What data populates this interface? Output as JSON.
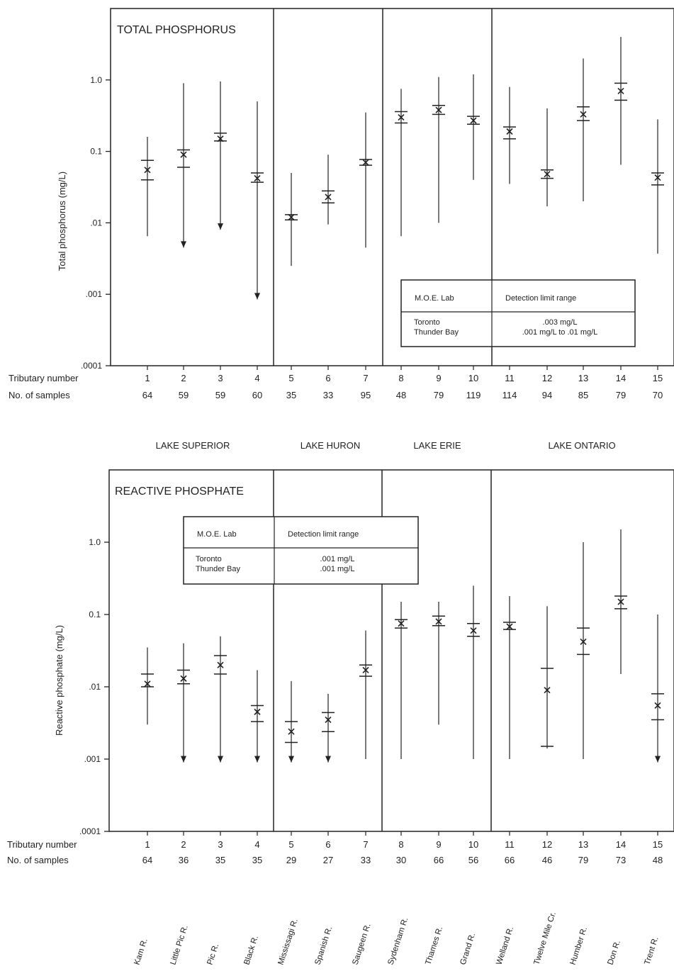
{
  "chart_data": [
    {
      "type": "range-plot",
      "title": "TOTAL PHOSPHORUS",
      "ylabel": "Total phosphorus   (mg/L)",
      "yscale": "log",
      "ylim": [
        0.0001,
        10
      ],
      "yticks": [
        {
          "v": 0.0001,
          "label": ".0001"
        },
        {
          "v": 0.001,
          "label": ".001"
        },
        {
          "v": 0.01,
          "label": ".01"
        },
        {
          "v": 0.1,
          "label": "0.1"
        },
        {
          "v": 1.0,
          "label": "1.0"
        }
      ],
      "row_labels": {
        "tributary": "Tributary number",
        "samples": "No. of samples"
      },
      "tributaries": [
        "1",
        "2",
        "3",
        "4",
        "5",
        "6",
        "7",
        "8",
        "9",
        "10",
        "11",
        "12",
        "13",
        "14",
        "15"
      ],
      "samples": [
        "64",
        "59",
        "59",
        "60",
        "35",
        "33",
        "95",
        "48",
        "79",
        "119",
        "114",
        "94",
        "85",
        "79",
        "70"
      ],
      "points": [
        {
          "max": 0.16,
          "upper": 0.075,
          "mean": 0.055,
          "lower": 0.04,
          "min": 0.0065,
          "min_arrow": false
        },
        {
          "max": 0.9,
          "upper": 0.105,
          "mean": 0.09,
          "lower": 0.06,
          "min": 0.0045,
          "min_arrow": true
        },
        {
          "max": 0.95,
          "upper": 0.18,
          "mean": 0.15,
          "lower": 0.14,
          "min": 0.008,
          "min_arrow": true
        },
        {
          "max": 0.5,
          "upper": 0.05,
          "mean": 0.042,
          "lower": 0.037,
          "min": 0.00085,
          "min_arrow": true
        },
        {
          "max": 0.05,
          "upper": 0.013,
          "mean": 0.012,
          "lower": 0.011,
          "min": 0.0025,
          "min_arrow": false
        },
        {
          "max": 0.09,
          "upper": 0.028,
          "mean": 0.023,
          "lower": 0.019,
          "min": 0.0095,
          "min_arrow": false
        },
        {
          "max": 0.35,
          "upper": 0.077,
          "mean": 0.07,
          "lower": 0.064,
          "min": 0.0045,
          "min_arrow": false
        },
        {
          "max": 0.75,
          "upper": 0.36,
          "mean": 0.3,
          "lower": 0.25,
          "min": 0.0065,
          "min_arrow": false
        },
        {
          "max": 1.1,
          "upper": 0.44,
          "mean": 0.38,
          "lower": 0.33,
          "min": 0.01,
          "min_arrow": false
        },
        {
          "max": 1.2,
          "upper": 0.31,
          "mean": 0.27,
          "lower": 0.24,
          "min": 0.04,
          "min_arrow": false
        },
        {
          "max": 0.8,
          "upper": 0.22,
          "mean": 0.19,
          "lower": 0.15,
          "min": 0.035,
          "min_arrow": false
        },
        {
          "max": 0.4,
          "upper": 0.055,
          "mean": 0.048,
          "lower": 0.042,
          "min": 0.017,
          "min_arrow": false
        },
        {
          "max": 2.0,
          "upper": 0.42,
          "mean": 0.33,
          "lower": 0.27,
          "min": 0.02,
          "min_arrow": false
        },
        {
          "max": 4.0,
          "upper": 0.9,
          "mean": 0.7,
          "lower": 0.52,
          "min": 0.065,
          "min_arrow": false
        },
        {
          "max": 0.28,
          "upper": 0.05,
          "mean": 0.043,
          "lower": 0.034,
          "min": 0.0037,
          "min_arrow": false
        }
      ],
      "inset_table": {
        "header": [
          "M.O.E. Lab",
          "Detection limit range"
        ],
        "rows": [
          [
            "Toronto\nThunder Bay",
            ".003 mg/L\n.001 mg/L to .01 mg/L"
          ]
        ]
      }
    },
    {
      "type": "range-plot",
      "title": "REACTIVE PHOSPHATE",
      "ylabel": "Reactive phosphate   (mg/L)",
      "yscale": "log",
      "ylim": [
        0.0001,
        10
      ],
      "yticks": [
        {
          "v": 0.0001,
          "label": ".0001"
        },
        {
          "v": 0.001,
          "label": ".001"
        },
        {
          "v": 0.01,
          "label": ".01"
        },
        {
          "v": 0.1,
          "label": "0.1"
        },
        {
          "v": 1.0,
          "label": "1.0"
        }
      ],
      "row_labels": {
        "tributary": "Tributary number",
        "samples": "No. of samples"
      },
      "tributaries": [
        "1",
        "2",
        "3",
        "4",
        "5",
        "6",
        "7",
        "8",
        "9",
        "10",
        "11",
        "12",
        "13",
        "14",
        "15"
      ],
      "samples": [
        "64",
        "36",
        "35",
        "35",
        "29",
        "27",
        "33",
        "30",
        "66",
        "56",
        "66",
        "46",
        "79",
        "73",
        "48"
      ],
      "points": [
        {
          "max": 0.035,
          "upper": 0.015,
          "mean": 0.011,
          "lower": 0.01,
          "min": 0.003,
          "min_arrow": false
        },
        {
          "max": 0.04,
          "upper": 0.017,
          "mean": 0.013,
          "lower": 0.011,
          "min": 0.0009,
          "min_arrow": true
        },
        {
          "max": 0.05,
          "upper": 0.027,
          "mean": 0.02,
          "lower": 0.015,
          "min": 0.0009,
          "min_arrow": true
        },
        {
          "max": 0.017,
          "upper": 0.0055,
          "mean": 0.0045,
          "lower": 0.0033,
          "min": 0.0009,
          "min_arrow": true
        },
        {
          "max": 0.012,
          "upper": 0.0033,
          "mean": 0.0024,
          "lower": 0.0017,
          "min": 0.0009,
          "min_arrow": true
        },
        {
          "max": 0.008,
          "upper": 0.0044,
          "mean": 0.0035,
          "lower": 0.0024,
          "min": 0.0009,
          "min_arrow": true
        },
        {
          "max": 0.06,
          "upper": 0.02,
          "mean": 0.017,
          "lower": 0.014,
          "min": 0.001,
          "min_arrow": false
        },
        {
          "max": 0.15,
          "upper": 0.085,
          "mean": 0.075,
          "lower": 0.065,
          "min": 0.001,
          "min_arrow": false
        },
        {
          "max": 0.15,
          "upper": 0.095,
          "mean": 0.08,
          "lower": 0.07,
          "min": 0.003,
          "min_arrow": false
        },
        {
          "max": 0.25,
          "upper": 0.075,
          "mean": 0.06,
          "lower": 0.05,
          "min": 0.001,
          "min_arrow": false
        },
        {
          "max": 0.18,
          "upper": 0.078,
          "mean": 0.068,
          "lower": 0.062,
          "min": 0.001,
          "min_arrow": false
        },
        {
          "max": 0.13,
          "upper": 0.018,
          "mean": 0.009,
          "lower": 0.0015,
          "min": 0.0014,
          "min_arrow": false
        },
        {
          "max": 1.0,
          "upper": 0.065,
          "mean": 0.042,
          "lower": 0.028,
          "min": 0.001,
          "min_arrow": false
        },
        {
          "max": 1.5,
          "upper": 0.18,
          "mean": 0.15,
          "lower": 0.12,
          "min": 0.015,
          "min_arrow": false
        },
        {
          "max": 0.1,
          "upper": 0.008,
          "mean": 0.0055,
          "lower": 0.0035,
          "min": 0.0009,
          "min_arrow": true
        }
      ],
      "inset_table": {
        "header": [
          "M.O.E. Lab",
          "Detection limit range"
        ],
        "rows": [
          [
            "Toronto\nThunder Bay",
            ".001 mg/L\n.001 mg/L"
          ]
        ]
      }
    }
  ],
  "lakes": [
    "LAKE SUPERIOR",
    "LAKE HURON",
    "LAKE ERIE",
    "LAKE ONTARIO"
  ],
  "rivers": [
    "Kam R.",
    "Little Pic R.",
    "Pic R.",
    "Black R.",
    "Mississagi R.",
    "Spanish R.",
    "Saugeen R.",
    "Sydenham R.",
    "Thames R.",
    "Grand R.",
    "Welland R.",
    "Twelve Mile Cr.",
    "Humber R.",
    "Don R.",
    "Trent R."
  ]
}
